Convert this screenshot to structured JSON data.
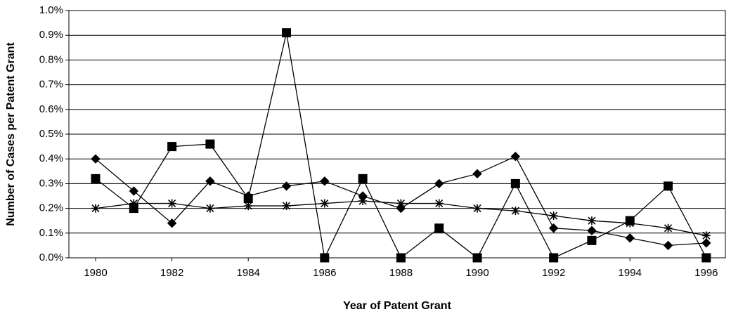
{
  "chart_data": {
    "type": "line",
    "xlabel": "Year of Patent Grant",
    "ylabel": "Number of Cases per Patent Grant",
    "x": [
      1980,
      1981,
      1982,
      1983,
      1984,
      1985,
      1986,
      1987,
      1988,
      1989,
      1990,
      1991,
      1992,
      1993,
      1994,
      1995,
      1996
    ],
    "xlim": [
      1979.3,
      1996.5
    ],
    "xticks": [
      1980,
      1982,
      1984,
      1986,
      1988,
      1990,
      1992,
      1994,
      1996
    ],
    "ylim": [
      0,
      1.0
    ],
    "yticks": [
      {
        "value": 0,
        "label": "0.0%"
      },
      {
        "value": 0.1,
        "label": "0.1%"
      },
      {
        "value": 0.2,
        "label": "0.2%"
      },
      {
        "value": 0.3,
        "label": "0.3%"
      },
      {
        "value": 0.4,
        "label": "0.4%"
      },
      {
        "value": 0.5,
        "label": "0.5%"
      },
      {
        "value": 0.6,
        "label": "0.6%"
      },
      {
        "value": 0.7,
        "label": "0.7%"
      },
      {
        "value": 0.8,
        "label": "0.8%"
      },
      {
        "value": 0.9,
        "label": "0.9%"
      },
      {
        "value": 1.0,
        "label": "1.0%"
      }
    ],
    "grid": true,
    "series": [
      {
        "color": "#000000",
        "marker": "diamond",
        "values": [
          0.4,
          0.27,
          0.14,
          0.31,
          0.25,
          0.29,
          0.31,
          0.25,
          0.2,
          0.3,
          0.34,
          0.41,
          0.12,
          0.11,
          0.08,
          0.05,
          0.06
        ]
      },
      {
        "color": "#000000",
        "marker": "square",
        "values": [
          0.32,
          0.2,
          0.45,
          0.46,
          0.24,
          0.91,
          0.0,
          0.32,
          0.0,
          0.12,
          0.0,
          0.3,
          0.0,
          0.07,
          0.15,
          0.29,
          0.0
        ]
      },
      {
        "color": "#000000",
        "marker": "star",
        "values": [
          0.2,
          0.22,
          0.22,
          0.2,
          0.21,
          0.21,
          0.22,
          0.23,
          0.22,
          0.22,
          0.2,
          0.19,
          0.17,
          0.15,
          0.14,
          0.12,
          0.09
        ]
      }
    ]
  }
}
